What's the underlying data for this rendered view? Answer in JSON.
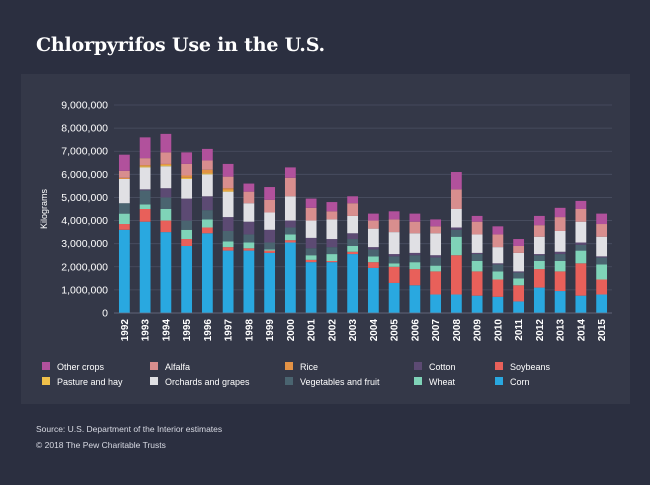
{
  "title": "Chlorpyrifos Use in the U.S.",
  "source": "Source: U.S. Department of the Interior estimates",
  "copyright": "© 2018 The Pew Charitable Trusts",
  "chart_data": {
    "type": "bar",
    "stacked": true,
    "title": "Chlorpyrifos Use in the U.S.",
    "xlabel": "",
    "ylabel": "Kilograms",
    "ylim": [
      0,
      9000000
    ],
    "yticks": [
      0,
      1000000,
      2000000,
      3000000,
      4000000,
      5000000,
      6000000,
      7000000,
      8000000,
      9000000
    ],
    "ytick_labels": [
      "0",
      "1,000,000",
      "2,000,000",
      "3,000,000",
      "4,000,000",
      "5,000,000",
      "6,000,000",
      "7,000,000",
      "8,000,000",
      "9,000,000"
    ],
    "grid": true,
    "legend_position": "bottom",
    "categories": [
      "1992",
      "1993",
      "1994",
      "1995",
      "1996",
      "1997",
      "1998",
      "1999",
      "2000",
      "2001",
      "2002",
      "2003",
      "2004",
      "2005",
      "2006",
      "2007",
      "2008",
      "2009",
      "2010",
      "2011",
      "2012",
      "2013",
      "2014",
      "2015"
    ],
    "series": [
      {
        "name": "Corn",
        "color": "#29a8e0",
        "values": [
          3600000,
          3950000,
          3500000,
          2900000,
          3450000,
          2700000,
          2700000,
          2600000,
          3050000,
          2200000,
          2200000,
          2550000,
          1950000,
          1300000,
          1200000,
          800000,
          800000,
          750000,
          700000,
          500000,
          1100000,
          950000,
          750000,
          800000
        ]
      },
      {
        "name": "Soybeans",
        "color": "#e8605a",
        "values": [
          250000,
          550000,
          500000,
          300000,
          250000,
          150000,
          100000,
          100000,
          100000,
          100000,
          50000,
          100000,
          250000,
          700000,
          700000,
          1000000,
          1700000,
          1050000,
          750000,
          700000,
          800000,
          850000,
          1400000,
          650000
        ]
      },
      {
        "name": "Wheat",
        "color": "#7fd3b8",
        "values": [
          450000,
          200000,
          500000,
          400000,
          350000,
          250000,
          250000,
          50000,
          250000,
          200000,
          300000,
          250000,
          250000,
          150000,
          300000,
          250000,
          800000,
          450000,
          350000,
          300000,
          350000,
          450000,
          550000,
          650000
        ]
      },
      {
        "name": "Vegetables and fruit",
        "color": "#4a6470",
        "values": [
          450000,
          600000,
          500000,
          400000,
          400000,
          450000,
          350000,
          300000,
          300000,
          300000,
          300000,
          300000,
          300000,
          300000,
          300000,
          350000,
          300000,
          300000,
          300000,
          250000,
          250000,
          300000,
          250000,
          300000
        ]
      },
      {
        "name": "Cotton",
        "color": "#5c4a73",
        "values": [
          0,
          50000,
          400000,
          950000,
          600000,
          600000,
          550000,
          550000,
          300000,
          450000,
          350000,
          250000,
          100000,
          100000,
          100000,
          100000,
          100000,
          50000,
          50000,
          50000,
          50000,
          100000,
          100000,
          50000
        ]
      },
      {
        "name": "Orchards and grapes",
        "color": "#e0e0e4",
        "values": [
          1050000,
          950000,
          950000,
          850000,
          950000,
          1100000,
          800000,
          750000,
          1050000,
          750000,
          850000,
          750000,
          800000,
          950000,
          850000,
          950000,
          800000,
          800000,
          700000,
          800000,
          750000,
          900000,
          900000,
          850000
        ]
      },
      {
        "name": "Pasture and hay",
        "color": "#f0c04a",
        "values": [
          0,
          50000,
          50000,
          50000,
          50000,
          50000,
          0,
          0,
          0,
          0,
          0,
          0,
          0,
          0,
          0,
          0,
          0,
          0,
          0,
          0,
          0,
          0,
          0,
          0
        ]
      },
      {
        "name": "Rice",
        "color": "#e39245",
        "values": [
          50000,
          50000,
          50000,
          100000,
          150000,
          100000,
          0,
          0,
          0,
          0,
          0,
          0,
          0,
          0,
          0,
          0,
          0,
          0,
          0,
          0,
          0,
          0,
          0,
          0
        ]
      },
      {
        "name": "Alfalfa",
        "color": "#d88e8e",
        "values": [
          300000,
          300000,
          500000,
          500000,
          400000,
          500000,
          500000,
          550000,
          800000,
          550000,
          350000,
          550000,
          350000,
          550000,
          500000,
          300000,
          850000,
          550000,
          550000,
          300000,
          500000,
          600000,
          550000,
          550000
        ]
      },
      {
        "name": "Other crops",
        "color": "#b1519c",
        "values": [
          700000,
          900000,
          800000,
          500000,
          500000,
          550000,
          350000,
          550000,
          450000,
          400000,
          400000,
          300000,
          300000,
          350000,
          350000,
          300000,
          750000,
          250000,
          350000,
          300000,
          400000,
          400000,
          350000,
          450000
        ]
      }
    ]
  },
  "legend_layout": [
    [
      "Other crops",
      "Alfalfa",
      "Rice",
      "Cotton",
      "Soybeans"
    ],
    [
      "Pasture and hay",
      "Orchards and grapes",
      "Vegetables and fruit",
      "Wheat",
      "Corn"
    ]
  ]
}
